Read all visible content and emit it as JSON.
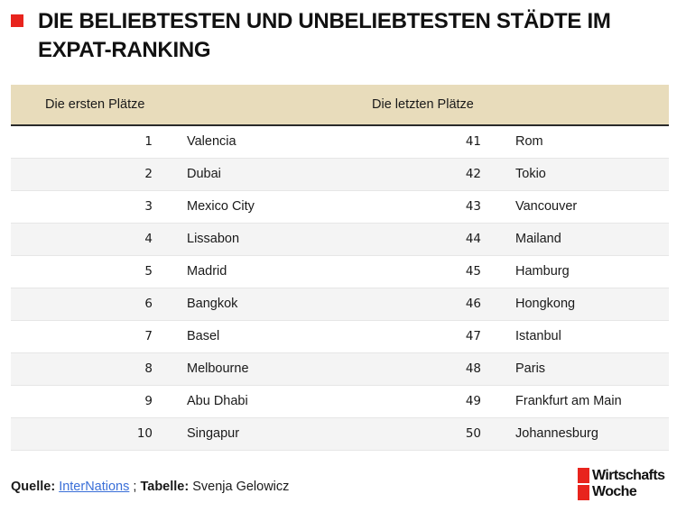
{
  "title": "DIE BELIEBTESTEN UND UNBELIEBTESTEN STÄDTE IM EXPAT-RANKING",
  "columns": {
    "first": "Die ersten Plätze",
    "last": "Die letzten Plätze"
  },
  "rows": [
    {
      "rank_first": "1",
      "city_first": "Valencia",
      "rank_last": "41",
      "city_last": "Rom"
    },
    {
      "rank_first": "2",
      "city_first": "Dubai",
      "rank_last": "42",
      "city_last": "Tokio"
    },
    {
      "rank_first": "3",
      "city_first": "Mexico City",
      "rank_last": "43",
      "city_last": "Vancouver"
    },
    {
      "rank_first": "4",
      "city_first": "Lissabon",
      "rank_last": "44",
      "city_last": "Mailand"
    },
    {
      "rank_first": "5",
      "city_first": "Madrid",
      "rank_last": "45",
      "city_last": "Hamburg"
    },
    {
      "rank_first": "6",
      "city_first": "Bangkok",
      "rank_last": "46",
      "city_last": "Hongkong"
    },
    {
      "rank_first": "7",
      "city_first": "Basel",
      "rank_last": "47",
      "city_last": "Istanbul"
    },
    {
      "rank_first": "8",
      "city_first": "Melbourne",
      "rank_last": "48",
      "city_last": "Paris"
    },
    {
      "rank_first": "9",
      "city_first": "Abu Dhabi",
      "rank_last": "49",
      "city_last": "Frankfurt am Main"
    },
    {
      "rank_first": "10",
      "city_first": "Singapur",
      "rank_last": "50",
      "city_last": "Johannesburg"
    }
  ],
  "footer": {
    "source_label": "Quelle:",
    "source_link": "InterNations",
    "separator": ";",
    "table_label": "Tabelle:",
    "author": "Svenja Gelowicz"
  },
  "logo": {
    "line1": "Wirtschafts",
    "line2": "Woche"
  },
  "colors": {
    "accent": "#e8241d",
    "header_bg": "#e8dcbb",
    "link": "#3a6fd8"
  }
}
